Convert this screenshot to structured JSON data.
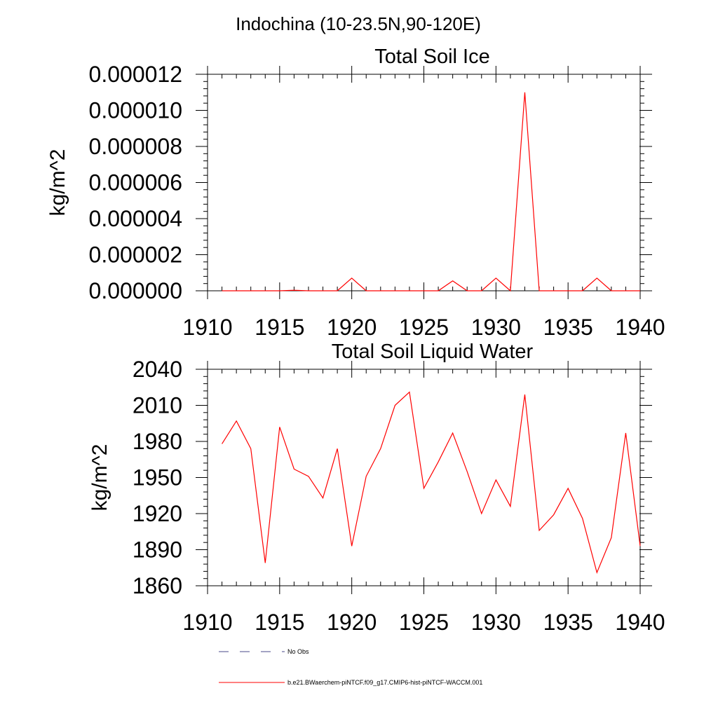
{
  "figure_title": "Indochina (10-23.5N,90-120E)",
  "colors": {
    "series": "#ff0000",
    "no_obs": "#4a4a8a",
    "axis": "#000000"
  },
  "legend": [
    {
      "label": "No Obs",
      "style": "dashed"
    },
    {
      "label": "b.e21.BWaerchem-piNTCF.f09_g17.CMIP6-hist-piNTCF-WACCM.001",
      "style": "solid"
    }
  ],
  "chart_data": [
    {
      "type": "line",
      "title": "Total Soil Ice",
      "xlabel": "",
      "ylabel": "kg/m^2",
      "xlim": [
        1910,
        1940
      ],
      "ylim": [
        0,
        1.2e-05
      ],
      "xticks": [
        1910,
        1915,
        1920,
        1925,
        1930,
        1935,
        1940
      ],
      "yticks": [
        0,
        2e-06,
        4e-06,
        6e-06,
        8e-06,
        1e-05,
        1.2e-05
      ],
      "ytick_labels": [
        "0.000000",
        "0.000002",
        "0.000004",
        "0.000006",
        "0.000008",
        "0.000010",
        "0.000012"
      ],
      "series": [
        {
          "x": [
            1911,
            1912,
            1913,
            1914,
            1915,
            1916,
            1917,
            1918,
            1919,
            1920,
            1921,
            1922,
            1923,
            1924,
            1925,
            1926,
            1927,
            1928,
            1929,
            1930,
            1931,
            1932,
            1933,
            1934,
            1935,
            1936,
            1937,
            1938,
            1939,
            1940
          ],
          "values": [
            0,
            0,
            0,
            0,
            0,
            3e-08,
            0,
            0,
            0,
            7e-07,
            0,
            0,
            0,
            0,
            0,
            0,
            5.5e-07,
            0,
            0,
            7e-07,
            0,
            1.1e-05,
            0,
            0,
            0,
            0,
            7e-07,
            0,
            0,
            0
          ]
        }
      ]
    },
    {
      "type": "line",
      "title": "Total Soil Liquid Water",
      "xlabel": "",
      "ylabel": "kg/m^2",
      "xlim": [
        1910,
        1940
      ],
      "ylim": [
        1860,
        2040
      ],
      "xticks": [
        1910,
        1915,
        1920,
        1925,
        1930,
        1935,
        1940
      ],
      "yticks": [
        1860,
        1890,
        1920,
        1950,
        1980,
        2010,
        2040
      ],
      "ytick_labels": [
        "1860",
        "1890",
        "1920",
        "1950",
        "1980",
        "2010",
        "2040"
      ],
      "series": [
        {
          "x": [
            1911,
            1912,
            1913,
            1914,
            1915,
            1916,
            1917,
            1918,
            1919,
            1920,
            1921,
            1922,
            1923,
            1924,
            1925,
            1926,
            1927,
            1928,
            1929,
            1930,
            1931,
            1932,
            1933,
            1934,
            1935,
            1936,
            1937,
            1938,
            1939,
            1940
          ],
          "values": [
            1978,
            1997,
            1974,
            1879,
            1992,
            1957,
            1951,
            1933,
            1974,
            1893,
            1951,
            1974,
            2010,
            2021,
            1941,
            1963,
            1987,
            1955,
            1920,
            1948,
            1926,
            2019,
            1906,
            1919,
            1941,
            1916,
            1871,
            1900,
            1987,
            1893
          ]
        }
      ]
    }
  ]
}
